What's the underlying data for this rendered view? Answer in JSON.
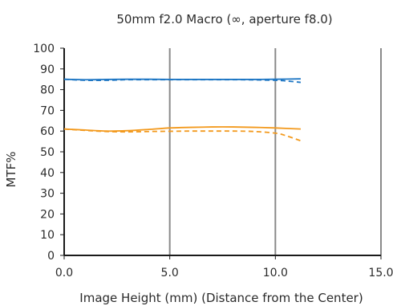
{
  "chart_data": {
    "type": "line",
    "title": "50mm f2.0 Macro (∞, aperture f8.0)",
    "xlabel": "Image Height (mm) (Distance from the Center)",
    "ylabel": "MTF%",
    "xlim": [
      0,
      15
    ],
    "ylim": [
      0,
      100
    ],
    "x_ticks": [
      "0.0",
      "5.0",
      "10.0",
      "15.0"
    ],
    "y_ticks": [
      "0",
      "10",
      "20",
      "30",
      "40",
      "50",
      "60",
      "70",
      "80",
      "90",
      "100"
    ],
    "grid": "vertical",
    "series": [
      {
        "color": "#1f77c4",
        "dash": "solid",
        "x": [
          0,
          1,
          2,
          3,
          4,
          5,
          6,
          7,
          8,
          9,
          10,
          11.2
        ],
        "y": [
          85,
          84.8,
          84.9,
          85,
          85,
          84.9,
          84.9,
          84.9,
          84.9,
          84.9,
          85,
          85.2
        ]
      },
      {
        "color": "#1f77c4",
        "dash": "dashed",
        "x": [
          0,
          1,
          2,
          3,
          4,
          5,
          6,
          7,
          8,
          9,
          10,
          10.5,
          11.2
        ],
        "y": [
          85,
          84.5,
          84.5,
          84.8,
          84.8,
          84.8,
          84.8,
          84.8,
          84.8,
          84.7,
          84.5,
          84.2,
          83.5
        ]
      },
      {
        "color": "#f39a1e",
        "dash": "solid",
        "x": [
          0,
          1,
          2,
          3,
          4,
          5,
          6,
          7,
          8,
          9,
          10,
          11.2
        ],
        "y": [
          61,
          60.5,
          60,
          60.2,
          60.8,
          61.5,
          61.8,
          62,
          62,
          61.8,
          61.5,
          61
        ]
      },
      {
        "color": "#f39a1e",
        "dash": "dashed",
        "x": [
          0,
          1,
          2,
          3,
          4,
          5,
          6,
          7,
          8,
          9,
          10,
          10.5,
          11.2
        ],
        "y": [
          61,
          60.3,
          59.8,
          59.6,
          59.8,
          59.9,
          60,
          60,
          60,
          59.8,
          59,
          57.8,
          55.3
        ]
      }
    ]
  }
}
